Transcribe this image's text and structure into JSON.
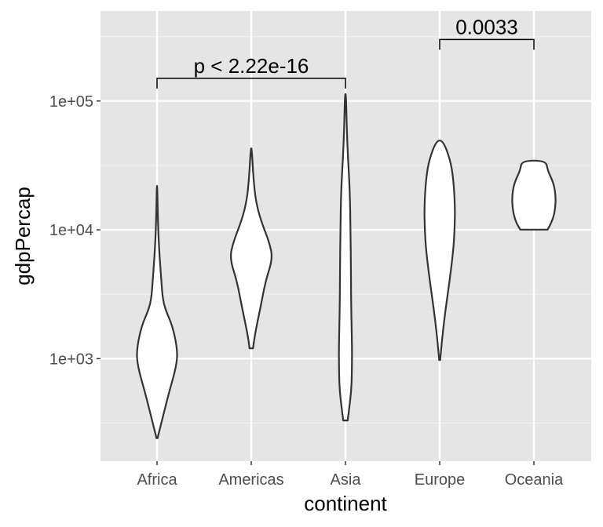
{
  "chart_data": {
    "type": "violin",
    "xlabel": "continent",
    "ylabel": "gdpPercap",
    "y_scale": "log10",
    "ylim": [
      160,
      500000
    ],
    "y_ticks": [
      1000,
      10000,
      100000
    ],
    "y_tick_labels": [
      "1e+03",
      "1e+04",
      "1e+05"
    ],
    "grid": true,
    "categories": [
      "Africa",
      "Americas",
      "Asia",
      "Europe",
      "Oceania"
    ],
    "colors": {
      "panel": "#e5e5e5",
      "grid": "#ffffff",
      "violin_fill": "#ffffff",
      "violin_stroke": "#333333"
    },
    "series": [
      {
        "category": "Africa",
        "min": 241,
        "max": 21951,
        "profile": [
          [
            241,
            0.02
          ],
          [
            330,
            0.22
          ],
          [
            550,
            0.55
          ],
          [
            900,
            0.9
          ],
          [
            1200,
            0.92
          ],
          [
            1800,
            0.7
          ],
          [
            2400,
            0.38
          ],
          [
            3000,
            0.25
          ],
          [
            4000,
            0.2
          ],
          [
            6000,
            0.12
          ],
          [
            10000,
            0.05
          ],
          [
            21951,
            0.01
          ]
        ]
      },
      {
        "category": "Americas",
        "min": 1202,
        "max": 42952,
        "profile": [
          [
            1202,
            0.08
          ],
          [
            1500,
            0.15
          ],
          [
            2500,
            0.42
          ],
          [
            4000,
            0.65
          ],
          [
            6000,
            0.98
          ],
          [
            8000,
            0.82
          ],
          [
            12000,
            0.42
          ],
          [
            17000,
            0.2
          ],
          [
            25000,
            0.1
          ],
          [
            42952,
            0.02
          ]
        ]
      },
      {
        "category": "Asia",
        "min": 331,
        "max": 113523,
        "profile": [
          [
            331,
            0.1
          ],
          [
            420,
            0.18
          ],
          [
            600,
            0.28
          ],
          [
            1000,
            0.3
          ],
          [
            1500,
            0.29
          ],
          [
            2500,
            0.26
          ],
          [
            5000,
            0.25
          ],
          [
            10000,
            0.23
          ],
          [
            20000,
            0.2
          ],
          [
            40000,
            0.1
          ],
          [
            70000,
            0.05
          ],
          [
            113523,
            0.02
          ]
        ]
      },
      {
        "category": "Europe",
        "min": 974,
        "max": 49357,
        "profile": [
          [
            974,
            0.02
          ],
          [
            1500,
            0.12
          ],
          [
            2500,
            0.28
          ],
          [
            4000,
            0.45
          ],
          [
            7000,
            0.62
          ],
          [
            10000,
            0.68
          ],
          [
            15000,
            0.7
          ],
          [
            25000,
            0.62
          ],
          [
            35000,
            0.48
          ],
          [
            49357,
            0.15
          ]
        ]
      },
      {
        "category": "Oceania",
        "min": 10040,
        "max": 34435,
        "profile": [
          [
            10040,
            0.62
          ],
          [
            11500,
            0.82
          ],
          [
            14000,
            0.96
          ],
          [
            18000,
            1.0
          ],
          [
            23000,
            0.9
          ],
          [
            29000,
            0.62
          ],
          [
            34435,
            0.55
          ]
        ]
      }
    ],
    "annotations": [
      {
        "from": "Africa",
        "to": "Asia",
        "label": "p < 2.22e-16",
        "y": 150000
      },
      {
        "from": "Europe",
        "to": "Oceania",
        "label": "0.0033",
        "y": 300000
      }
    ]
  }
}
